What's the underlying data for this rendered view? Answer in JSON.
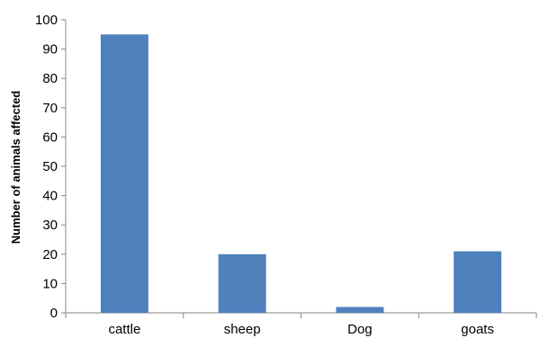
{
  "chart_data": {
    "type": "bar",
    "title": "",
    "xlabel": "",
    "ylabel": "Number of animals affected",
    "categories": [
      "cattle",
      "sheep",
      "Dog",
      "goats"
    ],
    "values": [
      95,
      20,
      2,
      21
    ],
    "ylim": [
      0,
      100
    ],
    "yticks": [
      0,
      10,
      20,
      30,
      40,
      50,
      60,
      70,
      80,
      90,
      100
    ],
    "grid": false,
    "legend": "none",
    "bar_color": "#4F81BD",
    "axis_color": "#868686"
  }
}
